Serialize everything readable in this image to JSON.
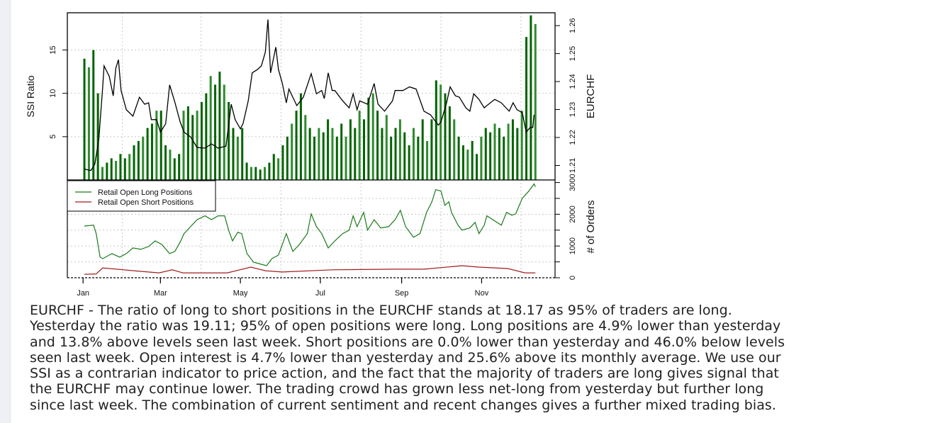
{
  "chart_data": {
    "type": "bar+line",
    "top_panel": {
      "left_axis": {
        "label": "SSI Ratio",
        "ticks": [
          "5",
          "10",
          "15"
        ],
        "tick_values": [
          5,
          10,
          15
        ],
        "ylim": [
          0,
          19.3
        ]
      },
      "right_axis": {
        "label": "EURCHF",
        "ticks": [
          "1.21",
          "1.22",
          "1.23",
          "1.24",
          "1.25",
          "1.26"
        ],
        "tick_values": [
          1.21,
          1.22,
          1.23,
          1.24,
          1.25,
          1.26
        ],
        "ylim": [
          1.2048,
          1.2646
        ]
      },
      "ssi_bars": {
        "name": "SSI Ratio",
        "day_range": [
          1,
          345
        ],
        "values": [
          14,
          13,
          15,
          10,
          1.5,
          2,
          2.5,
          2.2,
          3,
          2.5,
          3,
          4,
          4.5,
          5,
          6,
          6.5,
          8,
          8,
          4,
          3.5,
          2.5,
          3,
          8,
          8.5,
          7.5,
          8,
          9,
          10,
          12,
          11,
          12.5,
          11,
          9,
          6,
          5,
          6,
          2,
          1.5,
          1.5,
          1.2,
          1.5,
          2,
          3,
          2.5,
          4,
          5,
          6.5,
          8,
          10,
          7.5,
          6,
          5,
          6,
          5.5,
          7,
          6,
          5,
          6.5,
          5,
          7,
          6,
          8,
          7,
          9.5,
          10,
          8,
          6,
          7.5,
          5,
          6,
          7,
          5.5,
          4,
          6,
          5,
          7,
          4.5,
          7,
          11.5,
          11,
          10,
          8.5,
          7,
          5,
          4,
          3.5,
          4.5,
          3,
          5,
          6,
          5.5,
          6.5,
          6,
          5,
          6.5,
          7,
          6,
          8,
          16.5,
          19,
          18
        ]
      },
      "price_line": {
        "name": "EURCHF",
        "points": [
          [
            1,
            1.2087
          ],
          [
            6,
            1.2082
          ],
          [
            9,
            1.2105
          ],
          [
            12,
            1.2194
          ],
          [
            15,
            1.2381
          ],
          [
            16,
            1.2456
          ],
          [
            20,
            1.2418
          ],
          [
            23,
            1.2349
          ],
          [
            25,
            1.2448
          ],
          [
            27,
            1.2478
          ],
          [
            29,
            1.2368
          ],
          [
            33,
            1.2299
          ],
          [
            38,
            1.2276
          ],
          [
            43,
            1.2344
          ],
          [
            47,
            1.2319
          ],
          [
            50,
            1.2324
          ],
          [
            52,
            1.2264
          ],
          [
            56,
            1.2264
          ],
          [
            59,
            1.2219
          ],
          [
            63,
            1.2249
          ],
          [
            66,
            1.2388
          ],
          [
            70,
            1.2326
          ],
          [
            74,
            1.2256
          ],
          [
            77,
            1.2219
          ],
          [
            82,
            1.2202
          ],
          [
            87,
            1.2164
          ],
          [
            93,
            1.2162
          ],
          [
            98,
            1.2177
          ],
          [
            103,
            1.2162
          ],
          [
            109,
            1.2169
          ],
          [
            113,
            1.2319
          ],
          [
            116,
            1.2264
          ],
          [
            120,
            1.2231
          ],
          [
            122,
            1.2249
          ],
          [
            126,
            1.2331
          ],
          [
            129,
            1.2431
          ],
          [
            133,
            1.2443
          ],
          [
            136,
            1.2456
          ],
          [
            139,
            1.2505
          ],
          [
            141,
            1.2622
          ],
          [
            143,
            1.2431
          ],
          [
            147,
            1.2523
          ],
          [
            149,
            1.2443
          ],
          [
            152,
            1.2393
          ],
          [
            155,
            1.2324
          ],
          [
            157,
            1.2373
          ],
          [
            163,
            1.2314
          ],
          [
            168,
            1.2344
          ],
          [
            174,
            1.2428
          ],
          [
            178,
            1.2356
          ],
          [
            182,
            1.2368
          ],
          [
            184,
            1.2339
          ],
          [
            187,
            1.2431
          ],
          [
            190,
            1.2368
          ],
          [
            192,
            1.2368
          ],
          [
            198,
            1.2331
          ],
          [
            203,
            1.2306
          ],
          [
            206,
            1.2356
          ],
          [
            209,
            1.2299
          ],
          [
            211,
            1.2331
          ],
          [
            217,
            1.2319
          ],
          [
            222,
            1.2393
          ],
          [
            225,
            1.2319
          ],
          [
            230,
            1.2294
          ],
          [
            236,
            1.2331
          ],
          [
            238,
            1.2368
          ],
          [
            244,
            1.2368
          ],
          [
            249,
            1.2381
          ],
          [
            254,
            1.2373
          ],
          [
            260,
            1.2294
          ],
          [
            265,
            1.2281
          ],
          [
            271,
            1.2244
          ],
          [
            273,
            1.2256
          ],
          [
            277,
            1.2319
          ],
          [
            280,
            1.2381
          ],
          [
            284,
            1.2349
          ],
          [
            287,
            1.2344
          ],
          [
            292,
            1.2306
          ],
          [
            295,
            1.2294
          ],
          [
            298,
            1.2356
          ],
          [
            302,
            1.2336
          ],
          [
            306,
            1.2306
          ],
          [
            308,
            1.2314
          ],
          [
            314,
            1.2336
          ],
          [
            319,
            1.2324
          ],
          [
            325,
            1.2294
          ],
          [
            328,
            1.2324
          ],
          [
            331,
            1.2299
          ],
          [
            335,
            1.2289
          ],
          [
            338,
            1.2219
          ],
          [
            341,
            1.2236
          ],
          [
            343,
            1.2236
          ],
          [
            344,
            1.2281
          ]
        ]
      }
    },
    "bottom_panel": {
      "right_axis": {
        "label": "# of Orders",
        "ticks": [
          "0",
          "1000",
          "2000",
          "3000"
        ],
        "tick_values": [
          0,
          1000,
          2000,
          3000
        ],
        "ylim": [
          0,
          3080
        ]
      },
      "legend": {
        "placement": "top-left",
        "entries": [
          "Retail Open Long Positions",
          "Retail Open Short Positions"
        ]
      },
      "series": [
        {
          "name": "Retail Open Long Positions",
          "color": "#1a7a1a",
          "points": [
            [
              1,
              1630
            ],
            [
              8,
              1655
            ],
            [
              10,
              1390
            ],
            [
              13,
              650
            ],
            [
              15,
              600
            ],
            [
              22,
              760
            ],
            [
              28,
              650
            ],
            [
              33,
              760
            ],
            [
              38,
              940
            ],
            [
              44,
              895
            ],
            [
              50,
              985
            ],
            [
              55,
              1160
            ],
            [
              60,
              1050
            ],
            [
              66,
              760
            ],
            [
              70,
              830
            ],
            [
              74,
              1120
            ],
            [
              77,
              1390
            ],
            [
              82,
              1610
            ],
            [
              87,
              1830
            ],
            [
              93,
              1950
            ],
            [
              98,
              1830
            ],
            [
              103,
              1950
            ],
            [
              108,
              1950
            ],
            [
              111,
              1500
            ],
            [
              114,
              1160
            ],
            [
              118,
              1430
            ],
            [
              121,
              1390
            ],
            [
              125,
              760
            ],
            [
              130,
              490
            ],
            [
              136,
              425
            ],
            [
              140,
              380
            ],
            [
              144,
              600
            ],
            [
              149,
              715
            ],
            [
              155,
              1390
            ],
            [
              157,
              1160
            ],
            [
              160,
              830
            ],
            [
              165,
              1050
            ],
            [
              171,
              1390
            ],
            [
              174,
              2010
            ],
            [
              178,
              1610
            ],
            [
              182,
              1390
            ],
            [
              187,
              940
            ],
            [
              192,
              1160
            ],
            [
              198,
              1390
            ],
            [
              203,
              1500
            ],
            [
              206,
              1950
            ],
            [
              209,
              1610
            ],
            [
              214,
              2060
            ],
            [
              217,
              1500
            ],
            [
              222,
              1830
            ],
            [
              227,
              1570
            ],
            [
              233,
              1610
            ],
            [
              238,
              1830
            ],
            [
              242,
              2125
            ],
            [
              246,
              1610
            ],
            [
              252,
              1275
            ],
            [
              257,
              1390
            ],
            [
              262,
              2060
            ],
            [
              266,
              2390
            ],
            [
              269,
              2775
            ],
            [
              273,
              2730
            ],
            [
              276,
              2280
            ],
            [
              279,
              2390
            ],
            [
              281,
              2060
            ],
            [
              286,
              1655
            ],
            [
              289,
              1500
            ],
            [
              295,
              1570
            ],
            [
              299,
              1745
            ],
            [
              302,
              1390
            ],
            [
              306,
              1655
            ],
            [
              308,
              1950
            ],
            [
              314,
              1790
            ],
            [
              319,
              1655
            ],
            [
              323,
              2060
            ],
            [
              327,
              1970
            ],
            [
              330,
              2010
            ],
            [
              335,
              2505
            ],
            [
              340,
              2730
            ],
            [
              344,
              2955
            ],
            [
              345,
              2865
            ]
          ]
        },
        {
          "name": "Retail Open Short Positions",
          "color": "#a01c1c",
          "points": [
            [
              1,
              110
            ],
            [
              10,
              120
            ],
            [
              15,
              310
            ],
            [
              44,
              200
            ],
            [
              58,
              155
            ],
            [
              68,
              250
            ],
            [
              76,
              155
            ],
            [
              110,
              155
            ],
            [
              128,
              335
            ],
            [
              139,
              220
            ],
            [
              152,
              180
            ],
            [
              190,
              250
            ],
            [
              238,
              270
            ],
            [
              260,
              270
            ],
            [
              289,
              380
            ],
            [
              302,
              335
            ],
            [
              324,
              290
            ],
            [
              337,
              155
            ],
            [
              345,
              155
            ]
          ]
        }
      ]
    },
    "x_axis": {
      "ticks": [
        "Jan",
        "Mar",
        "May",
        "Jul",
        "Sep",
        "Nov"
      ],
      "tick_days": [
        0,
        59,
        120,
        181,
        243,
        304
      ],
      "xlim": [
        -12,
        360
      ]
    },
    "colors": {
      "bars": "#006400",
      "price": "#000000",
      "long": "#1a7a1a",
      "short": "#a01c1c"
    }
  },
  "description": [
    "EURCHF - The ratio of long to short positions in the EURCHF stands at 18.17 as 95% of traders are long.",
    "Yesterday the ratio was 19.11; 95% of open positions were long. Long positions are 4.9% lower than yesterday",
    "and 13.8% above levels seen last week. Short positions are 0.0% lower than yesterday and 46.0% below levels",
    "seen last week. Open interest is 4.7% lower than yesterday and 25.6% above its monthly average. We use our",
    "SSI as a contrarian indicator to price action, and the fact that the majority of traders are long gives signal that",
    "the EURCHF may continue lower. The trading crowd has grown less net-long from yesterday but further long",
    "since last week. The combination of current sentiment and recent changes gives a further mixed trading bias."
  ]
}
